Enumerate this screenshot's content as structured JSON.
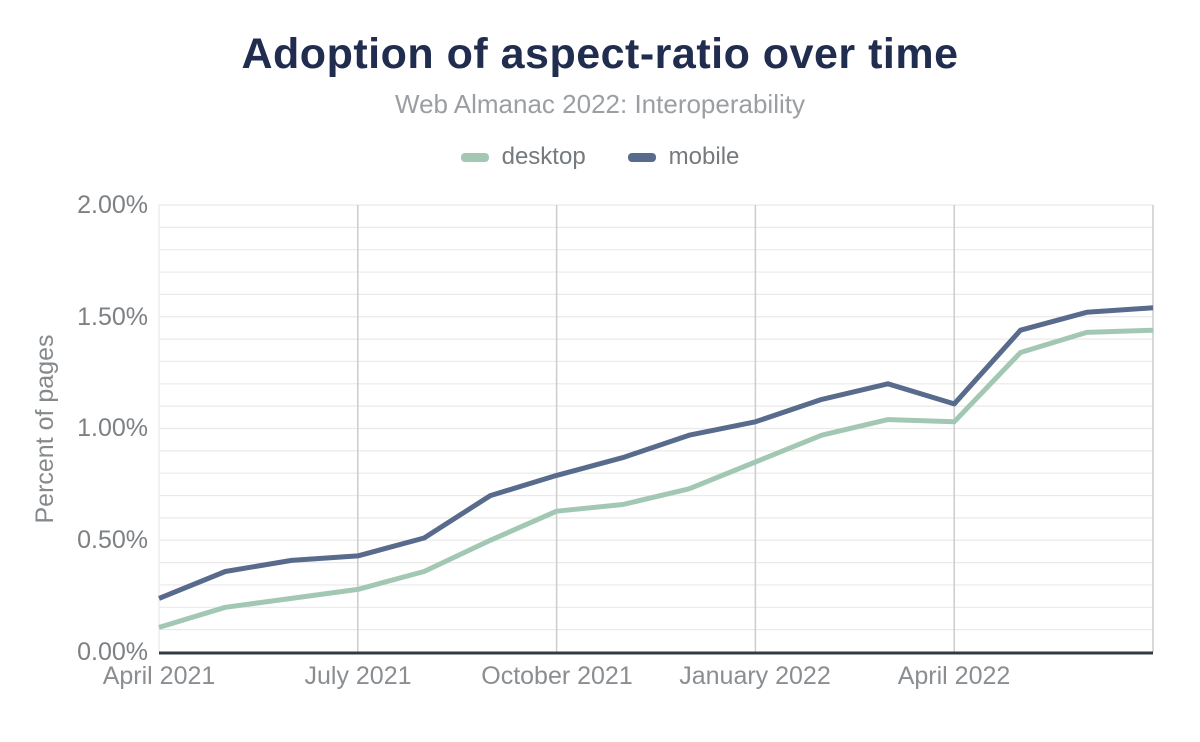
{
  "chart_data": {
    "type": "line",
    "title": "Adoption of aspect-ratio over time",
    "subtitle": "Web Almanac 2022: Interoperability",
    "xlabel": "",
    "ylabel": "Percent of pages",
    "ylim": [
      0,
      2.0
    ],
    "grid": true,
    "minor_grid_step_pct": 0.1,
    "legend_position": "top",
    "y_tick_labels": [
      "0.00%",
      "0.50%",
      "1.00%",
      "1.50%",
      "2.00%"
    ],
    "x_tick_labels": [
      "April 2021",
      "July 2021",
      "October 2021",
      "January 2022",
      "April 2022"
    ],
    "x_tick_month_indices": [
      0,
      3,
      6,
      9,
      12
    ],
    "x_gridline_month_indices": [
      3,
      6,
      9,
      12
    ],
    "x": [
      "April 2021",
      "May 2021",
      "June 2021",
      "July 2021",
      "August 2021",
      "September 2021",
      "October 2021",
      "November 2021",
      "December 2021",
      "January 2022",
      "February 2022",
      "March 2022",
      "April 2022",
      "May 2022",
      "June 2022",
      "July 2022"
    ],
    "unit": "percent of pages",
    "series": [
      {
        "name": "desktop",
        "color": "#a2c8b3",
        "values": [
          0.11,
          0.2,
          0.24,
          0.28,
          0.36,
          0.5,
          0.63,
          0.66,
          0.73,
          0.85,
          0.97,
          1.04,
          1.03,
          1.34,
          1.43,
          1.44
        ]
      },
      {
        "name": "mobile",
        "color": "#596b8c",
        "values": [
          0.24,
          0.36,
          0.41,
          0.43,
          0.51,
          0.7,
          0.79,
          0.87,
          0.97,
          1.03,
          1.13,
          1.2,
          1.11,
          1.44,
          1.52,
          1.54
        ]
      }
    ],
    "colors": {
      "title": "#212d4f",
      "axis_line": "#323b44",
      "minor_gridline": "#eaeaea",
      "major_gridline": "#cccccc",
      "tick_text": "#7d8184"
    }
  }
}
